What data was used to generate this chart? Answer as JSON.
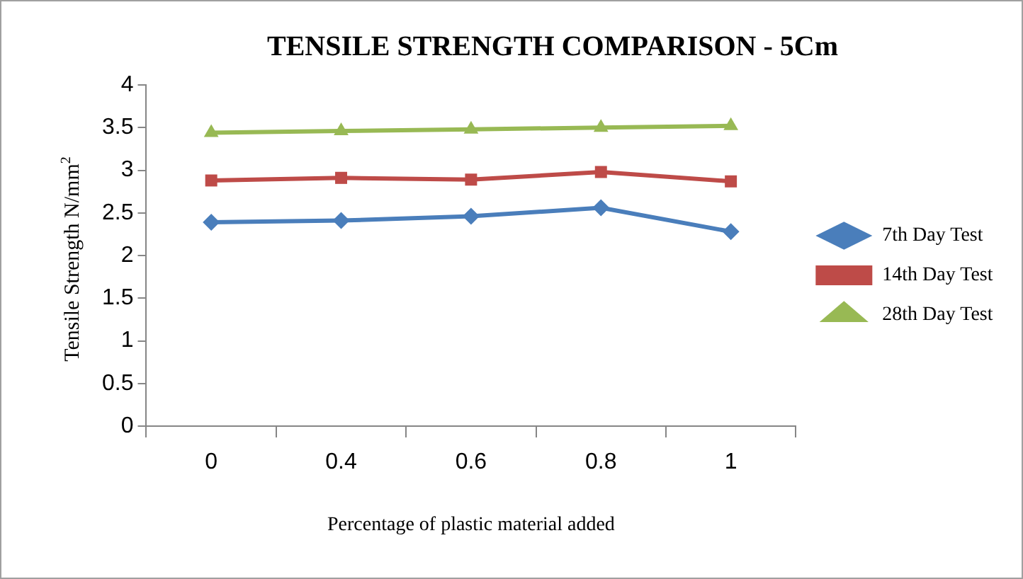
{
  "chart_data": {
    "type": "line",
    "title": "TENSILE STRENGTH COMPARISON - 5Cm",
    "xlabel": "Percentage of plastic material added",
    "ylabel": "Tensile Strength N/mm$^{2}$",
    "categories": [
      "0",
      "0.4",
      "0.6",
      "0.8",
      "1"
    ],
    "series": [
      {
        "name": "7th Day Test",
        "color": "#4a7ebb",
        "marker": "diamond",
        "values": [
          2.39,
          2.41,
          2.46,
          2.56,
          2.28
        ]
      },
      {
        "name": "14th Day Test",
        "color": "#be4b48",
        "marker": "square",
        "values": [
          2.88,
          2.91,
          2.89,
          2.98,
          2.87
        ]
      },
      {
        "name": "28th Day Test",
        "color": "#98b954",
        "marker": "triangle",
        "values": [
          3.44,
          3.46,
          3.48,
          3.5,
          3.52
        ]
      }
    ],
    "ylim": [
      0,
      4
    ],
    "yticks": [
      0,
      0.5,
      1,
      1.5,
      2,
      2.5,
      3,
      3.5,
      4
    ],
    "grid": false,
    "legend": "right",
    "line_style": "solid"
  }
}
